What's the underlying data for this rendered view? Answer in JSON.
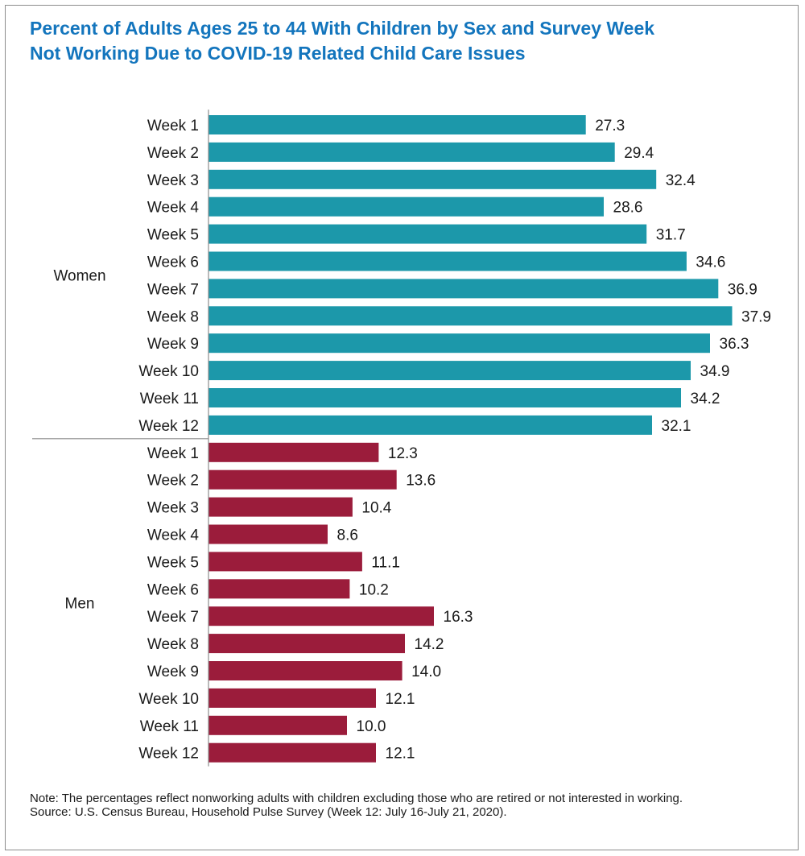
{
  "title": {
    "line1": "Percent of Adults Ages 25 to 44 With Children by Sex and Survey Week",
    "line2": "Not Working Due to COVID-19 Related Child Care Issues"
  },
  "note": "Note: The percentages reflect nonworking adults with children excluding those who are retired or not interested in working.",
  "source": "Source: U.S. Census Bureau, Household Pulse Survey (Week 12: July 16-July 21, 2020).",
  "colors": {
    "women": "#1c98aa",
    "men": "#9b1c3b",
    "title": "#1375bd"
  },
  "chart_data": {
    "type": "bar",
    "orientation": "horizontal",
    "title": "Percent of Adults Ages 25 to 44 With Children by Sex and Survey Week Not Working Due to COVID-19 Related Child Care Issues",
    "xlabel": "",
    "ylabel": "",
    "xlim": [
      0,
      40
    ],
    "grid": false,
    "categories": [
      "Week 1",
      "Week 2",
      "Week 3",
      "Week 4",
      "Week 5",
      "Week 6",
      "Week 7",
      "Week 8",
      "Week 9",
      "Week 10",
      "Week 11",
      "Week 12"
    ],
    "groups": [
      {
        "name": "Women",
        "color": "#1c98aa",
        "values": [
          27.3,
          29.4,
          32.4,
          28.6,
          31.7,
          34.6,
          36.9,
          37.9,
          36.3,
          34.9,
          34.2,
          32.1
        ]
      },
      {
        "name": "Men",
        "color": "#9b1c3b",
        "values": [
          12.3,
          13.6,
          10.4,
          8.6,
          11.1,
          10.2,
          16.3,
          14.2,
          14.0,
          12.1,
          10.0,
          12.1
        ]
      }
    ]
  }
}
